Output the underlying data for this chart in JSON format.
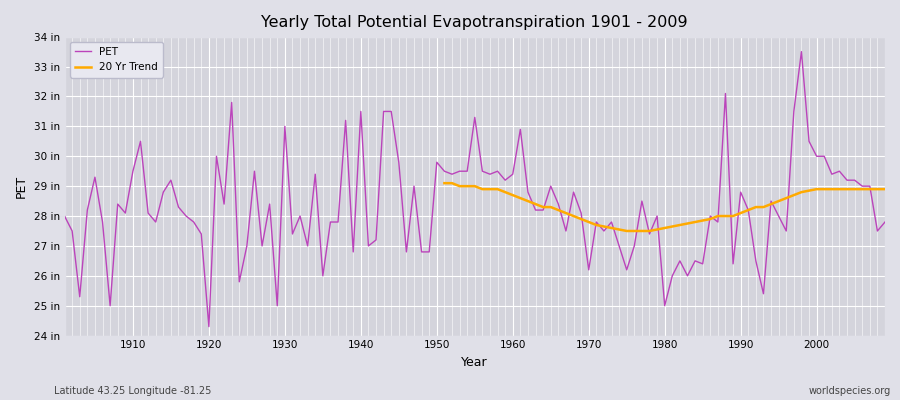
{
  "title": "Yearly Total Potential Evapotranspiration 1901 - 2009",
  "ylabel": "PET",
  "xlabel": "Year",
  "footer_left": "Latitude 43.25 Longitude -81.25",
  "footer_right": "worldspecies.org",
  "pet_color": "#bb44bb",
  "trend_color": "#ffaa00",
  "bg_color": "#e0e0e8",
  "plot_bg_color": "#d4d4dc",
  "ylim": [
    24,
    34
  ],
  "years": [
    1901,
    1902,
    1903,
    1904,
    1905,
    1906,
    1907,
    1908,
    1909,
    1910,
    1911,
    1912,
    1913,
    1914,
    1915,
    1916,
    1917,
    1918,
    1919,
    1920,
    1921,
    1922,
    1923,
    1924,
    1925,
    1926,
    1927,
    1928,
    1929,
    1930,
    1931,
    1932,
    1933,
    1934,
    1935,
    1936,
    1937,
    1938,
    1939,
    1940,
    1941,
    1942,
    1943,
    1944,
    1945,
    1946,
    1947,
    1948,
    1949,
    1950,
    1951,
    1952,
    1953,
    1954,
    1955,
    1956,
    1957,
    1958,
    1959,
    1960,
    1961,
    1962,
    1963,
    1964,
    1965,
    1966,
    1967,
    1968,
    1969,
    1970,
    1971,
    1972,
    1973,
    1974,
    1975,
    1976,
    1977,
    1978,
    1979,
    1980,
    1981,
    1982,
    1983,
    1984,
    1985,
    1986,
    1987,
    1988,
    1989,
    1990,
    1991,
    1992,
    1993,
    1994,
    1995,
    1996,
    1997,
    1998,
    1999,
    2000,
    2001,
    2002,
    2003,
    2004,
    2005,
    2006,
    2007,
    2008,
    2009
  ],
  "pet_values": [
    28.0,
    27.5,
    25.3,
    28.2,
    29.3,
    27.8,
    25.0,
    28.4,
    28.1,
    29.5,
    30.5,
    28.1,
    27.8,
    28.8,
    29.2,
    28.3,
    28.0,
    27.8,
    27.4,
    24.3,
    30.0,
    28.4,
    31.8,
    25.8,
    27.0,
    29.5,
    27.0,
    28.4,
    25.0,
    31.0,
    27.4,
    28.0,
    27.0,
    29.4,
    26.0,
    27.8,
    27.8,
    31.2,
    26.8,
    31.5,
    27.0,
    27.2,
    31.5,
    31.5,
    29.8,
    26.8,
    29.0,
    26.8,
    26.8,
    29.8,
    29.5,
    29.4,
    29.5,
    29.5,
    31.3,
    29.5,
    29.4,
    29.5,
    29.2,
    29.4,
    30.9,
    28.8,
    28.2,
    28.2,
    29.0,
    28.4,
    27.5,
    28.8,
    28.1,
    26.2,
    27.8,
    27.5,
    27.8,
    27.0,
    26.2,
    27.0,
    28.5,
    27.4,
    28.0,
    25.0,
    26.0,
    26.5,
    26.0,
    26.5,
    26.4,
    28.0,
    27.8,
    32.1,
    26.4,
    28.8,
    28.2,
    26.5,
    25.4,
    28.5,
    28.0,
    27.5,
    31.5,
    33.5,
    30.5,
    30.0,
    30.0,
    29.4,
    29.5,
    29.2,
    29.2,
    29.0,
    29.0,
    27.5,
    27.8
  ],
  "trend_years": [
    1951,
    1952,
    1953,
    1954,
    1955,
    1956,
    1957,
    1958,
    1959,
    1960,
    1961,
    1962,
    1963,
    1964,
    1965,
    1966,
    1967,
    1968,
    1969,
    1970,
    1971,
    1972,
    1973,
    1974,
    1975,
    1976,
    1977,
    1978,
    1979,
    1980,
    1981,
    1982,
    1983,
    1984,
    1985,
    1986,
    1987,
    1988,
    1989,
    1990,
    1991,
    1992,
    1993,
    1994,
    1995,
    1996,
    1997,
    1998,
    1999,
    2000,
    2001,
    2002,
    2003,
    2004,
    2005,
    2006,
    2007,
    2008,
    2009
  ],
  "trend_values": [
    29.1,
    29.1,
    29.0,
    29.0,
    29.0,
    28.9,
    28.9,
    28.9,
    28.8,
    28.7,
    28.6,
    28.5,
    28.4,
    28.3,
    28.3,
    28.2,
    28.1,
    28.0,
    27.9,
    27.8,
    27.7,
    27.65,
    27.6,
    27.55,
    27.5,
    27.5,
    27.5,
    27.5,
    27.55,
    27.6,
    27.65,
    27.7,
    27.75,
    27.8,
    27.85,
    27.9,
    28.0,
    28.0,
    28.0,
    28.1,
    28.2,
    28.3,
    28.3,
    28.4,
    28.5,
    28.6,
    28.7,
    28.8,
    28.85,
    28.9,
    28.9,
    28.9,
    28.9,
    28.9,
    28.9,
    28.9,
    28.9,
    28.9,
    28.9
  ]
}
